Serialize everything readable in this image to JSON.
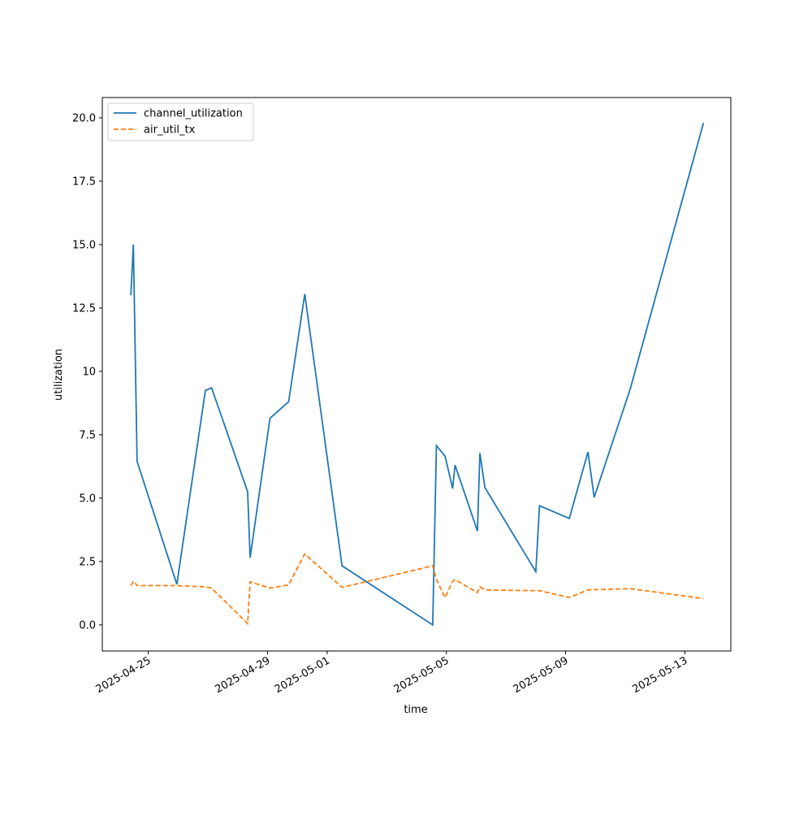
{
  "chart_data": {
    "type": "line",
    "x_label": "time",
    "y_label": "utilization",
    "x": [
      "2025-04-24T10:00",
      "2025-04-24T12:00",
      "2025-04-24T15:00",
      "2025-04-25T23:00",
      "2025-04-26T22:00",
      "2025-04-27T03:00",
      "2025-04-28T08:00",
      "2025-04-28T10:00",
      "2025-04-29T02:00",
      "2025-04-29T17:00",
      "2025-04-30T06:00",
      "2025-05-01T12:00",
      "2025-05-04T13:00",
      "2025-05-04T16:00",
      "2025-05-04T23:00",
      "2025-05-05T05:00",
      "2025-05-05T07:00",
      "2025-05-06T01:00",
      "2025-05-06T03:00",
      "2025-05-06T07:00",
      "2025-05-08T00:00",
      "2025-05-08T03:00",
      "2025-05-09T03:00",
      "2025-05-09T18:00",
      "2025-05-09T23:00",
      "2025-05-11T04:00",
      "2025-05-13T15:00"
    ],
    "series": [
      {
        "name": "channel_utilization",
        "color": "#1f77b4",
        "style": "solid",
        "values": [
          13.0,
          15.0,
          6.45,
          1.6,
          9.25,
          9.35,
          5.25,
          2.65,
          8.15,
          8.8,
          13.05,
          2.33,
          0.0,
          7.07,
          6.65,
          5.38,
          6.3,
          3.7,
          6.78,
          5.42,
          2.1,
          4.7,
          4.2,
          6.82,
          5.03,
          9.3,
          19.8
        ]
      },
      {
        "name": "air_util_tx",
        "color": "#ff7f0e",
        "style": "dashed",
        "values": [
          1.55,
          1.72,
          1.55,
          1.55,
          1.5,
          1.45,
          0.05,
          1.7,
          1.45,
          1.58,
          2.8,
          1.48,
          2.33,
          1.78,
          1.08,
          1.72,
          1.78,
          1.28,
          1.5,
          1.38,
          1.35,
          1.35,
          1.08,
          1.38,
          1.39,
          1.43,
          1.04
        ]
      }
    ],
    "xlim": [
      "2025-04-23T11:00",
      "2025-05-14T13:00"
    ],
    "xticks": [
      "2025-04-25",
      "2025-04-29",
      "2025-05-01",
      "2025-05-05",
      "2025-05-09",
      "2025-05-13"
    ],
    "ylim": [
      -1.03,
      20.8
    ],
    "yticks": [
      {
        "value": 0,
        "label": "0.0"
      },
      2.5,
      {
        "value": 5,
        "label": "5.0"
      },
      7.5,
      10.0,
      12.5,
      {
        "value": 15,
        "label": "15.0"
      },
      17.5,
      {
        "value": 20,
        "label": "20.0"
      }
    ],
    "legend": "upper left",
    "grid": false
  }
}
